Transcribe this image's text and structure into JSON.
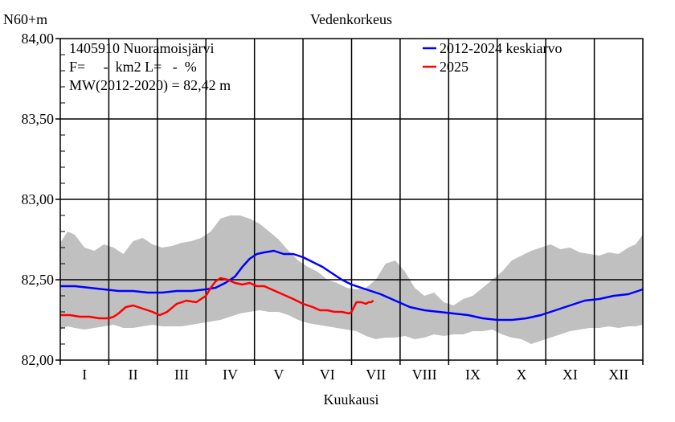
{
  "chart_data": {
    "type": "line",
    "title": "Vedenkorkeus",
    "ylabel": "N60+m",
    "xlabel": "Kuukausi",
    "ylim": [
      82.0,
      84.0
    ],
    "xlim": [
      0,
      12
    ],
    "yticks": [
      "84,00",
      "83,50",
      "83,00",
      "82,50",
      "82,00"
    ],
    "ytick_values": [
      84.0,
      83.5,
      83.0,
      82.5,
      82.0
    ],
    "categories": [
      "I",
      "II",
      "III",
      "IV",
      "V",
      "VI",
      "VII",
      "VIII",
      "IX",
      "X",
      "XI",
      "XII"
    ],
    "grid": true,
    "legend_position": "top-right",
    "info_lines": [
      "1405910 Nuoramoisjärvi",
      "F=     -  km2 L=   -  %",
      "MW(2012-2020) = 82,42 m"
    ],
    "colors": {
      "band": "#c0c0c0",
      "mean": "#0000ff",
      "current": "#ff0000"
    },
    "band": {
      "name": "",
      "x": [
        0.0,
        0.15,
        0.3,
        0.5,
        0.7,
        0.9,
        1.1,
        1.3,
        1.5,
        1.7,
        1.9,
        2.1,
        2.3,
        2.5,
        2.7,
        2.9,
        3.1,
        3.3,
        3.5,
        3.7,
        3.9,
        4.1,
        4.3,
        4.5,
        4.7,
        4.9,
        5.1,
        5.3,
        5.5,
        5.7,
        5.9,
        6.1,
        6.3,
        6.5,
        6.7,
        6.9,
        7.1,
        7.3,
        7.5,
        7.7,
        7.9,
        8.1,
        8.3,
        8.5,
        8.7,
        8.9,
        9.1,
        9.3,
        9.5,
        9.7,
        9.9,
        10.1,
        10.3,
        10.5,
        10.7,
        10.9,
        11.1,
        11.3,
        11.5,
        11.7,
        11.85,
        12.0
      ],
      "upper": [
        82.73,
        82.8,
        82.78,
        82.7,
        82.68,
        82.72,
        82.7,
        82.66,
        82.74,
        82.76,
        82.72,
        82.7,
        82.71,
        82.73,
        82.74,
        82.76,
        82.8,
        82.88,
        82.9,
        82.9,
        82.88,
        82.85,
        82.8,
        82.75,
        82.68,
        82.62,
        82.58,
        82.55,
        82.5,
        82.48,
        82.45,
        82.44,
        82.45,
        82.5,
        82.6,
        82.62,
        82.55,
        82.45,
        82.4,
        82.42,
        82.36,
        82.34,
        82.38,
        82.4,
        82.45,
        82.5,
        82.55,
        82.62,
        82.65,
        82.68,
        82.7,
        82.72,
        82.69,
        82.7,
        82.67,
        82.66,
        82.65,
        82.67,
        82.66,
        82.7,
        82.72,
        82.78
      ],
      "lower": [
        82.19,
        82.21,
        82.2,
        82.19,
        82.2,
        82.21,
        82.22,
        82.2,
        82.2,
        82.21,
        82.22,
        82.21,
        82.21,
        82.21,
        82.22,
        82.23,
        82.24,
        82.25,
        82.27,
        82.29,
        82.3,
        82.31,
        82.3,
        82.3,
        82.28,
        82.25,
        82.23,
        82.22,
        82.21,
        82.2,
        82.19,
        82.18,
        82.15,
        82.13,
        82.14,
        82.14,
        82.15,
        82.13,
        82.14,
        82.16,
        82.15,
        82.16,
        82.16,
        82.18,
        82.18,
        82.19,
        82.16,
        82.14,
        82.13,
        82.1,
        82.12,
        82.14,
        82.16,
        82.18,
        82.19,
        82.2,
        82.2,
        82.21,
        82.2,
        82.21,
        82.21,
        82.22
      ]
    },
    "series": [
      {
        "name": "2012-2024 keskiarvo",
        "x": [
          0.0,
          0.3,
          0.6,
          0.9,
          1.2,
          1.5,
          1.8,
          2.1,
          2.4,
          2.7,
          3.0,
          3.2,
          3.4,
          3.6,
          3.75,
          3.9,
          4.05,
          4.2,
          4.4,
          4.6,
          4.8,
          5.0,
          5.2,
          5.4,
          5.6,
          5.8,
          6.0,
          6.3,
          6.6,
          6.9,
          7.2,
          7.5,
          7.8,
          8.1,
          8.4,
          8.7,
          9.0,
          9.3,
          9.6,
          9.9,
          10.2,
          10.5,
          10.8,
          11.1,
          11.4,
          11.7,
          12.0
        ],
        "values": [
          82.46,
          82.46,
          82.45,
          82.44,
          82.43,
          82.43,
          82.42,
          82.42,
          82.43,
          82.43,
          82.44,
          82.45,
          82.48,
          82.52,
          82.58,
          82.63,
          82.66,
          82.67,
          82.68,
          82.66,
          82.66,
          82.64,
          82.61,
          82.58,
          82.54,
          82.5,
          82.47,
          82.44,
          82.41,
          82.37,
          82.33,
          82.31,
          82.3,
          82.29,
          82.28,
          82.26,
          82.25,
          82.25,
          82.26,
          82.28,
          82.31,
          82.34,
          82.37,
          82.38,
          82.4,
          82.41,
          82.44
        ]
      },
      {
        "name": "2025",
        "x": [
          0.0,
          0.2,
          0.4,
          0.6,
          0.8,
          1.0,
          1.1,
          1.2,
          1.35,
          1.5,
          1.7,
          1.9,
          2.05,
          2.2,
          2.4,
          2.6,
          2.8,
          3.0,
          3.1,
          3.2,
          3.3,
          3.45,
          3.6,
          3.75,
          3.9,
          4.05,
          4.2,
          4.35,
          4.5,
          4.65,
          4.8,
          5.0,
          5.2,
          5.35,
          5.5,
          5.65,
          5.8,
          5.95,
          6.0,
          6.1,
          6.2,
          6.3,
          6.35,
          6.4,
          6.45
        ],
        "values": [
          82.28,
          82.28,
          82.27,
          82.27,
          82.26,
          82.26,
          82.27,
          82.29,
          82.33,
          82.34,
          82.32,
          82.3,
          82.28,
          82.3,
          82.35,
          82.37,
          82.36,
          82.4,
          82.45,
          82.49,
          82.51,
          82.5,
          82.48,
          82.47,
          82.48,
          82.46,
          82.46,
          82.44,
          82.42,
          82.4,
          82.38,
          82.35,
          82.33,
          82.31,
          82.31,
          82.3,
          82.3,
          82.29,
          82.3,
          82.36,
          82.36,
          82.35,
          82.36,
          82.36,
          82.37
        ]
      }
    ]
  }
}
